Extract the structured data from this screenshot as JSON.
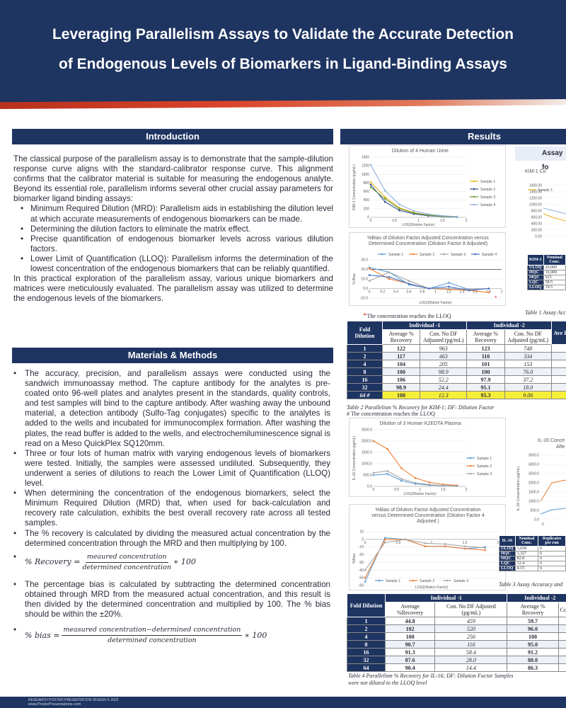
{
  "title_line1": "Leveraging Parallelism Assays to Validate the Accurate Detection",
  "title_line2": "of Endogenous Levels of Biomarkers in Ligand-Binding Assays",
  "intro": {
    "heading": "Introduction",
    "p1": "The classical purpose of the parallelism assay is to demonstrate that the sample-dilution response curve aligns with the standard-calibrator response curve. This alignment confirms that the calibrator material is suitable for measuring the endogenous analyte. Beyond its essential role, parallelism informs several other crucial assay parameters for biomarker ligand binding assays:",
    "bullets": [
      "Minimum Required Dilution (MRD): Parallelism aids in establishing the dilution level at which accurate measurements of endogenous biomarkers can be made.",
      "Determining the dilution factors to eliminate the matrix effect.",
      "Precise quantification of endogenous biomarker levels across various dilution factors.",
      "Lower Limit of Quantification (LLOQ): Parallelism informs the determination of the lowest concentration of the endogenous biomarkers that can be reliably quantified."
    ],
    "p2": "In this practical exploration of the parallelism assay, various unique biomarkers and matrices were meticulously evaluated. The parallelism assay was utilized to determine the endogenous levels of the biomarkers."
  },
  "methods": {
    "heading": "Materials & Methods",
    "bullets": [
      "The accuracy, precision, and parallelism assays were conducted using the sandwich immunoassay method. The capture antibody for the analytes is pre-coated onto 96-well plates and analytes present in the standards, quality controls, and test samples will bind to the capture antibody. After washing away the unbound material, a detection antibody (Sulfo-Tag conjugates) specific to the analytes is added to the wells and incubated for immunocomplex formation. After washing the plates, the read buffer is added to the wells, and electrochemiluminescence signal is read on a Meso QuickPlex SQ120mm.",
      "Three or four lots of human matrix with varying endogenous levels of biomarkers were tested. Initially, the samples were assessed undiluted. Subsequently, they underwent a series of dilutions to reach the Lower Limit of Quantification (LLOQ) level.",
      "When determining the concentration of the endogenous biomarkers, select the Minimum Required Dilution (MRD) that, when used for back-calculation and recovery rate calculation, exhibits the best overall recovery rate across all tested samples.",
      "The % recovery is calculated by dividing the measured actual concentration by the determined concentration through the MRD and then multiplying by 100."
    ],
    "eq1_lhs": "% Recovery =",
    "eq1_num": "meaured concentration",
    "eq1_den": "determined concentration",
    "eq1_rhs": "∗ 100",
    "bullet5": "The percentage bias is calculated by subtracting the determined concentration obtained through MRD from the measured actual concentration, and this result is then divided by the determined concentration and multiplied by 100. The % bias should be within the ±20%.",
    "eq2_lhs": "% bias =",
    "eq2_num": "measured concentration−determined concentration",
    "eq2_den": "determined concentration",
    "eq2_rhs": "∗ 100"
  },
  "results": {
    "heading": "Results",
    "assay_box": "Assay fo",
    "lloq_note": "The concentration reaches the LLOQ",
    "table1_caption": "Table 1 Assay Acc",
    "table2_caption": "Table 2 Parallelism % Recovery for KIM-1; DF: Dilution Factor",
    "table2_note": "# The concentration reaches the LLOQ",
    "table3_caption": "Table 3 Assay Accuracy and",
    "table4_caption": "Table 4 Parallelism % Recovery for IL-16; DF: Dilution Factor Samples were not diluted to the LLOQ level"
  },
  "table1": {
    "headers": [
      "KIM-1",
      "Nominal Conc."
    ],
    "rows": [
      [
        "ULOQ",
        "20,000"
      ],
      [
        "HQC",
        "16,000"
      ],
      [
        "MQC",
        "623"
      ],
      [
        "LQC",
        "58.5"
      ],
      [
        "LLOQ",
        "19.5"
      ]
    ]
  },
  "table3": {
    "headers": [
      "IL-16",
      "Nominal Conc.",
      "Replicates per run"
    ],
    "rows": [
      [
        "ULOQ",
        "1,658",
        "6"
      ],
      [
        "HQC",
        "1,327",
        "6"
      ],
      [
        "MQC",
        "82.8",
        "6"
      ],
      [
        "LQC",
        "12.4",
        "6"
      ],
      [
        "LLOQ",
        "4.15",
        "6"
      ]
    ]
  },
  "table2": {
    "h_fold": "Fold Dilution",
    "h_ind1": "Individual -1",
    "h_ind2": "Individual -2",
    "h_rec": "Average % Recovery",
    "h_con": "Con. No DF Adjusted (pg/mL)",
    "h_trunc": "Ave Re",
    "rows": [
      [
        "1",
        "122",
        "963",
        "123",
        "748"
      ],
      [
        "2",
        "117",
        "463",
        "110",
        "334"
      ],
      [
        "4",
        "104",
        "205",
        "101",
        "153"
      ],
      [
        "8",
        "100",
        "98.9",
        "100",
        "76.0"
      ],
      [
        "16",
        "106",
        "52.2",
        "97.9",
        "37.2"
      ],
      [
        "32",
        "98.9",
        "24.4",
        "95.1",
        "18.0"
      ],
      [
        "64 #",
        "100",
        "12.3",
        "95.3",
        "9.06"
      ]
    ]
  },
  "table4": {
    "h_fold": "Fold Dilution",
    "h_ind1": "Individual -1",
    "h_ind2": "Individual -2",
    "h_rec": "Average %Recovery",
    "h_con": "Con. No DF Adjusted (pg/mL)",
    "h_rec2": "Average % Recovery",
    "h_con2": "Con.",
    "rows": [
      [
        "1",
        "44.8",
        "459",
        "59.7"
      ],
      [
        "2",
        "102",
        "520",
        "96.0"
      ],
      [
        "4",
        "100",
        "256",
        "100"
      ],
      [
        "8",
        "90.7",
        "116",
        "95.0"
      ],
      [
        "16",
        "91.3",
        "58.4",
        "91.2"
      ],
      [
        "32",
        "87.6",
        "28.0",
        "88.0"
      ],
      [
        "64",
        "90.4",
        "14.4",
        "86.3"
      ]
    ]
  },
  "chart_data": [
    {
      "type": "line",
      "title": "Dilution of 4 Human Urine",
      "xlabel": "LOG(Dilution Factor)",
      "ylabel": "KIM-1 Concentration (pg/mL)",
      "x": [
        0,
        0.301,
        0.602,
        0.903,
        1.204,
        1.505,
        1.806
      ],
      "xlim": [
        0,
        2
      ],
      "ylim": [
        0,
        1400
      ],
      "xticks": [
        "0",
        "0.5",
        "1",
        "1.5",
        "2"
      ],
      "yticks": [
        "0",
        "200",
        "400",
        "600",
        "800",
        "1000",
        "1200",
        "1400"
      ],
      "series": [
        {
          "name": "Sample 1",
          "color": "#e8b21a",
          "values": [
            820,
            470,
            220,
            110,
            55,
            28,
            14
          ]
        },
        {
          "name": "Sample 2",
          "color": "#2f4d8e",
          "values": [
            760,
            360,
            160,
            80,
            38,
            19,
            9
          ]
        },
        {
          "name": "Sample 3",
          "color": "#6a9a3a",
          "values": [
            700,
            430,
            200,
            100,
            50,
            24,
            12
          ]
        },
        {
          "name": "Sample 4",
          "color": "#8fb0e0",
          "values": [
            1220,
            620,
            300,
            150,
            75,
            37,
            18
          ]
        }
      ]
    },
    {
      "type": "line",
      "title": "%Bias of Dilution Factor Adjusted Concentration versus Determined Concentration (Dilution Factor 8 Adjusted)",
      "xlabel": "LOG(Dilution Factor)",
      "ylabel": "% Bias",
      "x": [
        0,
        0.301,
        0.602,
        0.903,
        1.204,
        1.505,
        1.806
      ],
      "xlim": [
        0,
        2
      ],
      "ylim": [
        -10,
        30
      ],
      "xticks": [
        "0",
        "0.2",
        "0.4",
        "0.6",
        "0.8",
        "1",
        "1.2",
        "1.4",
        "1.6",
        "1.8",
        "2"
      ],
      "yticks": [
        "-10.0",
        "0.0",
        "10.0",
        "20.0",
        "30.0"
      ],
      "series": [
        {
          "name": "Sample 1",
          "color": "#5b9bd5",
          "values": [
            22,
            17,
            4,
            0,
            6,
            -1,
            0
          ]
        },
        {
          "name": "Sample 2",
          "color": "#ed7d31",
          "values": [
            21,
            10,
            5,
            0,
            -1,
            -2,
            -4
          ]
        },
        {
          "name": "Sample 3",
          "color": "#a5a5a5",
          "values": [
            8,
            17,
            8,
            0,
            0,
            -1,
            0
          ]
        },
        {
          "name": "Sample 4",
          "color": "#4472c4",
          "values": [
            14,
            12,
            5,
            0,
            2,
            -2,
            0
          ]
        }
      ]
    },
    {
      "type": "line",
      "title": "Dilution of 3 Human K2EDTA Plasma",
      "xlabel": "LOG(Dilution Factor)",
      "ylabel": "IL-16 Concentration (pg/mL)",
      "x": [
        0,
        0.301,
        0.602,
        0.903,
        1.204,
        1.505,
        1.806
      ],
      "xlim": [
        0,
        2
      ],
      "ylim": [
        0,
        2500
      ],
      "xticks": [
        "0",
        "0.5",
        "1",
        "1.5",
        "2"
      ],
      "yticks": [
        "0.0",
        "500.0",
        "1000.0",
        "1500.0",
        "2000.0",
        "2500.0"
      ],
      "series": [
        {
          "name": "Sample 1",
          "color": "#5b9bd5",
          "values": [
            500,
            550,
            250,
            110,
            55,
            28,
            14
          ]
        },
        {
          "name": "Sample 2",
          "color": "#ed7d31",
          "values": [
            2000,
            1650,
            800,
            370,
            180,
            90,
            45
          ]
        },
        {
          "name": "Sample 3",
          "color": "#a5a5a5",
          "values": [
            600,
            680,
            330,
            160,
            80,
            40,
            20
          ]
        }
      ]
    },
    {
      "type": "line",
      "title": "%Bias of Dilution Factor Adjusted Concentration versus Determined Concentration (Dilution Factor 4 Adjusted )",
      "xlabel": "LOG(Dilution Factor)",
      "ylabel": "%Bias",
      "x": [
        0,
        0.301,
        0.602,
        0.903,
        1.204,
        1.505,
        1.806
      ],
      "xlim": [
        0,
        2
      ],
      "ylim": [
        -60,
        10
      ],
      "xticks": [
        "0",
        "0.5",
        "1",
        "1.5",
        "2"
      ],
      "yticks": [
        "-60",
        "-50",
        "-40",
        "-30",
        "-20",
        "-10",
        "0",
        "10"
      ],
      "series": [
        {
          "name": "Sample 1",
          "color": "#5b9bd5",
          "values": [
            -55,
            2,
            0,
            -9,
            -9,
            -12,
            -10
          ]
        },
        {
          "name": "Sample 2",
          "color": "#ed7d31",
          "values": [
            -50,
            0,
            0,
            -9,
            -9,
            -12,
            -14
          ]
        },
        {
          "name": "Sample 3",
          "color": "#a5a5a5",
          "values": [
            -40,
            -4,
            0,
            -5,
            -6,
            -9,
            -11
          ]
        }
      ]
    }
  ],
  "partial_charts": {
    "kim1_title": "KIM-1 Co",
    "kim1_legend": "Sample 1",
    "kim1_yticks": [
      "0.00",
      "200.00",
      "400.00",
      "600.00",
      "800.00",
      "1000.00",
      "1200.00",
      "1400.00",
      "1600.00"
    ],
    "il16_title_1": "IL-16 Conce",
    "il16_title_2": "Afte",
    "il16_yticks": [
      "0.0",
      "500.0",
      "1000.0",
      "1500.0",
      "2000.0",
      "2500.0",
      "3000.0",
      "3500.0"
    ],
    "il16_ylabel": "IL-16 Concentration (pg/mL)",
    "il16_x0": "0"
  },
  "footer": {
    "line1": "RESEARCH POSTER PRESENTATION DESIGN © 2022",
    "line2": "www.PosterPresentations.com"
  },
  "colors": {
    "navy": "#1e3461",
    "accent": "#d9442a",
    "highlight": "#f7ee3a"
  }
}
